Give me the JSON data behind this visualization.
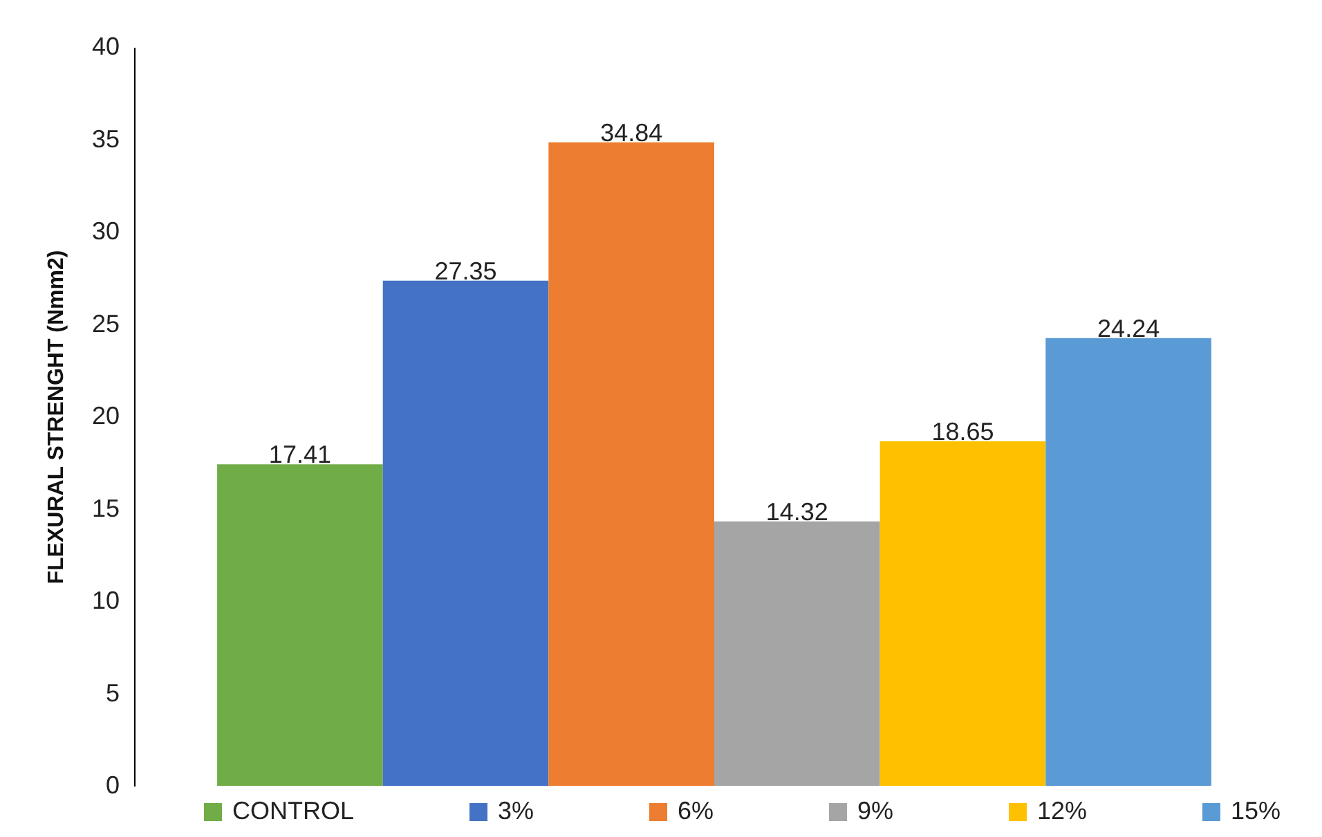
{
  "chart_data": {
    "type": "bar",
    "ylabel": "FLEXURAL STRENGHT (Nmm2)",
    "categories": [
      null
    ],
    "series": [
      {
        "name": "CONTROL",
        "color": "#70ad47",
        "values": [
          17.41
        ]
      },
      {
        "name": "3%",
        "color": "#4472c4",
        "values": [
          27.35
        ]
      },
      {
        "name": "6%",
        "color": "#ed7d31",
        "values": [
          34.84
        ]
      },
      {
        "name": "9%",
        "color": "#a5a5a5",
        "values": [
          14.32
        ]
      },
      {
        "name": "12%",
        "color": "#ffc000",
        "values": [
          18.65
        ]
      },
      {
        "name": "15%",
        "color": "#5b9bd5",
        "values": [
          24.24
        ]
      }
    ],
    "ylim": [
      0,
      40
    ],
    "yticks": [
      0,
      5,
      10,
      15,
      20,
      25,
      30,
      35,
      40
    ],
    "grid": false,
    "legend": "bottom",
    "data_labels": true
  }
}
